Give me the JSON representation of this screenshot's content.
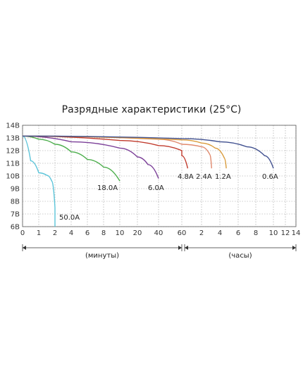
{
  "chart_data": {
    "type": "line",
    "title": "Разрядные характеристики (25°C)",
    "grid": true,
    "ylim": [
      6,
      14
    ],
    "y_ticks": [
      "14В",
      "13В",
      "12В",
      "11В",
      "10В",
      "9В",
      "8В",
      "7В",
      "6В"
    ],
    "x_axis": {
      "segments": [
        {
          "unit_label": "(минуты)",
          "ticks": [
            "0",
            "1",
            "2",
            "4",
            "6",
            "8",
            "10",
            "20",
            "40",
            "60"
          ]
        },
        {
          "unit_label": "(часы)",
          "ticks": [
            "2",
            "4",
            "6",
            "8",
            "10",
            "12",
            "14"
          ]
        }
      ]
    },
    "series": [
      {
        "name": "50.0A",
        "color": "#5bc4d9",
        "points": [
          [
            "0",
            13.15
          ],
          [
            "0.5",
            11.2
          ],
          [
            "1",
            10.25
          ],
          [
            "1.5",
            10.05
          ],
          [
            "1.8",
            9.6
          ],
          [
            "2",
            7.5
          ],
          [
            "2",
            6.0
          ]
        ]
      },
      {
        "name": "18.0A",
        "color": "#4cae4c",
        "points": [
          [
            "0",
            13.15
          ],
          [
            "1",
            12.9
          ],
          [
            "2",
            12.5
          ],
          [
            "4",
            11.9
          ],
          [
            "6",
            11.3
          ],
          [
            "8",
            10.7
          ],
          [
            "10",
            9.6
          ]
        ]
      },
      {
        "name": "6.0A",
        "color": "#7b3f98",
        "points": [
          [
            "0",
            13.15
          ],
          [
            "4",
            12.7
          ],
          [
            "10",
            12.2
          ],
          [
            "20",
            11.5
          ],
          [
            "30",
            10.9
          ],
          [
            "40",
            9.8
          ]
        ]
      },
      {
        "name": "4.8A",
        "color": "#c0392b",
        "points": [
          [
            "0",
            13.15
          ],
          [
            "10",
            12.8
          ],
          [
            "40",
            12.4
          ],
          [
            "60",
            12.0
          ],
          [
            "1ч",
            11.6
          ],
          [
            "1.3ч",
            10.6
          ]
        ]
      },
      {
        "name": "2.4A",
        "color": "#e08a6e",
        "points": [
          [
            "0",
            13.15
          ],
          [
            "40",
            12.9
          ],
          [
            "1ч",
            12.5
          ],
          [
            "2ч",
            12.3
          ],
          [
            "2.9ч",
            11.7
          ],
          [
            "3.1ч",
            10.6
          ]
        ]
      },
      {
        "name": "1.2A",
        "color": "#d99a3a",
        "points": [
          [
            "0",
            13.15
          ],
          [
            "60",
            12.85
          ],
          [
            "2ч",
            12.6
          ],
          [
            "3.5ч",
            12.2
          ],
          [
            "4.5ч",
            11.4
          ],
          [
            "4.7ч",
            10.6
          ]
        ]
      },
      {
        "name": "0.6A",
        "color": "#3f4f8f",
        "points": [
          [
            "0",
            13.15
          ],
          [
            "60",
            12.95
          ],
          [
            "4ч",
            12.7
          ],
          [
            "7ч",
            12.3
          ],
          [
            "9ч",
            11.6
          ],
          [
            "10ч",
            10.6
          ]
        ]
      }
    ]
  }
}
